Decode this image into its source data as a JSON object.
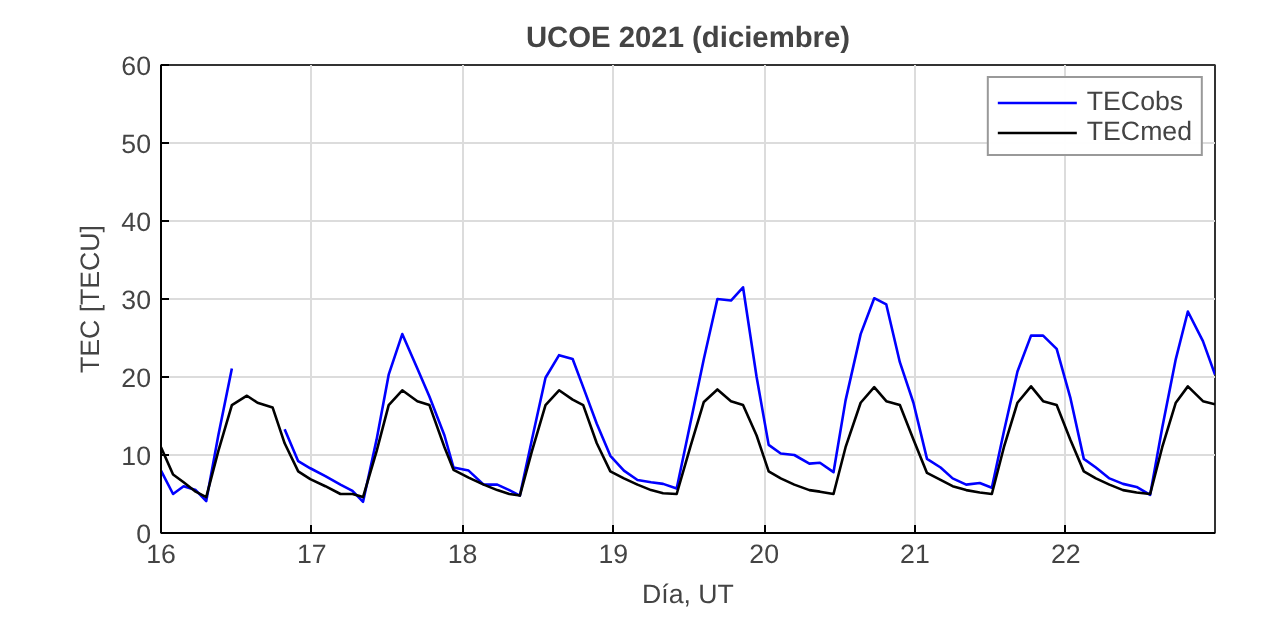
{
  "chart_data": {
    "type": "line",
    "title": "UCOE 2021 (diciembre)",
    "xlabel": "Día, UT",
    "ylabel": "TEC [TECU]",
    "x": [
      16.0,
      16.08,
      16.15,
      16.23,
      16.3,
      16.38,
      16.47,
      16.57,
      16.64,
      16.74,
      16.82,
      16.91,
      16.99,
      17.09,
      17.19,
      17.27,
      17.34,
      17.43,
      17.51,
      17.6,
      17.7,
      17.78,
      17.88,
      17.94,
      18.04,
      18.14,
      18.23,
      18.31,
      18.38,
      18.46,
      18.55,
      18.64,
      18.73,
      18.8,
      18.89,
      18.98,
      19.07,
      19.16,
      19.25,
      19.33,
      19.42,
      19.51,
      19.6,
      19.69,
      19.78,
      19.86,
      19.95,
      20.03,
      20.11,
      20.2,
      20.3,
      20.37,
      20.46,
      20.54,
      20.64,
      20.73,
      20.81,
      20.9,
      20.99,
      21.08,
      21.17,
      21.25,
      21.34,
      21.43,
      21.51,
      21.59,
      21.68,
      21.77,
      21.85,
      21.94,
      22.03,
      22.12,
      22.2,
      22.29,
      22.38,
      22.47,
      22.56,
      22.64,
      22.73,
      22.81,
      22.91,
      22.99
    ],
    "series": [
      {
        "name": "TECobs",
        "color": "#0000ff",
        "values": [
          8.0,
          5.0,
          6.0,
          5.5,
          4.1,
          12.5,
          21.1,
          null,
          null,
          null,
          13.3,
          9.2,
          8.3,
          7.3,
          6.2,
          5.4,
          4.0,
          12.0,
          20.3,
          25.5,
          21.1,
          17.5,
          12.5,
          8.4,
          8.0,
          6.2,
          6.2,
          5.5,
          4.8,
          12.0,
          19.9,
          22.8,
          22.3,
          18.7,
          14.0,
          9.9,
          8.0,
          6.8,
          6.5,
          6.3,
          5.7,
          14.0,
          22.3,
          30.0,
          29.8,
          31.5,
          20.0,
          11.3,
          10.2,
          10.0,
          8.9,
          9.0,
          7.8,
          17.0,
          25.5,
          30.1,
          29.3,
          21.9,
          16.7,
          9.5,
          8.4,
          7.0,
          6.2,
          6.4,
          5.8,
          13.0,
          20.7,
          25.3,
          25.3,
          23.6,
          17.4,
          9.5,
          8.4,
          7.0,
          6.3,
          5.9,
          4.9,
          13.5,
          22.3,
          28.4,
          24.6,
          20.3
        ]
      },
      {
        "name": "TECmed",
        "color": "#000000",
        "values": [
          11.0,
          7.5,
          6.5,
          5.3,
          4.6,
          10.5,
          16.4,
          17.6,
          16.7,
          16.1,
          11.5,
          7.9,
          6.9,
          6.0,
          5.0,
          5.0,
          4.6,
          10.5,
          16.4,
          18.3,
          16.9,
          16.4,
          11.0,
          8.1,
          7.1,
          6.2,
          5.5,
          5.0,
          4.8,
          10.5,
          16.4,
          18.3,
          17.1,
          16.4,
          11.5,
          7.9,
          7.0,
          6.2,
          5.5,
          5.1,
          5.0,
          11.0,
          16.8,
          18.4,
          16.9,
          16.4,
          12.5,
          7.9,
          7.0,
          6.2,
          5.5,
          5.3,
          5.0,
          11.0,
          16.7,
          18.7,
          16.9,
          16.4,
          12.0,
          7.7,
          6.8,
          6.0,
          5.5,
          5.2,
          5.0,
          11.0,
          16.7,
          18.8,
          16.9,
          16.4,
          12.0,
          7.9,
          7.0,
          6.2,
          5.5,
          5.2,
          5.0,
          11.0,
          16.7,
          18.8,
          16.9,
          16.5
        ]
      }
    ],
    "xlim": [
      16,
      22.99
    ],
    "ylim": [
      0,
      60
    ],
    "xticks": [
      16,
      17,
      18,
      19,
      20,
      21,
      22
    ],
    "yticks": [
      0,
      10,
      20,
      30,
      40,
      50,
      60
    ],
    "grid": true,
    "legend": "top right",
    "line_style": "solid",
    "marker": "none"
  }
}
